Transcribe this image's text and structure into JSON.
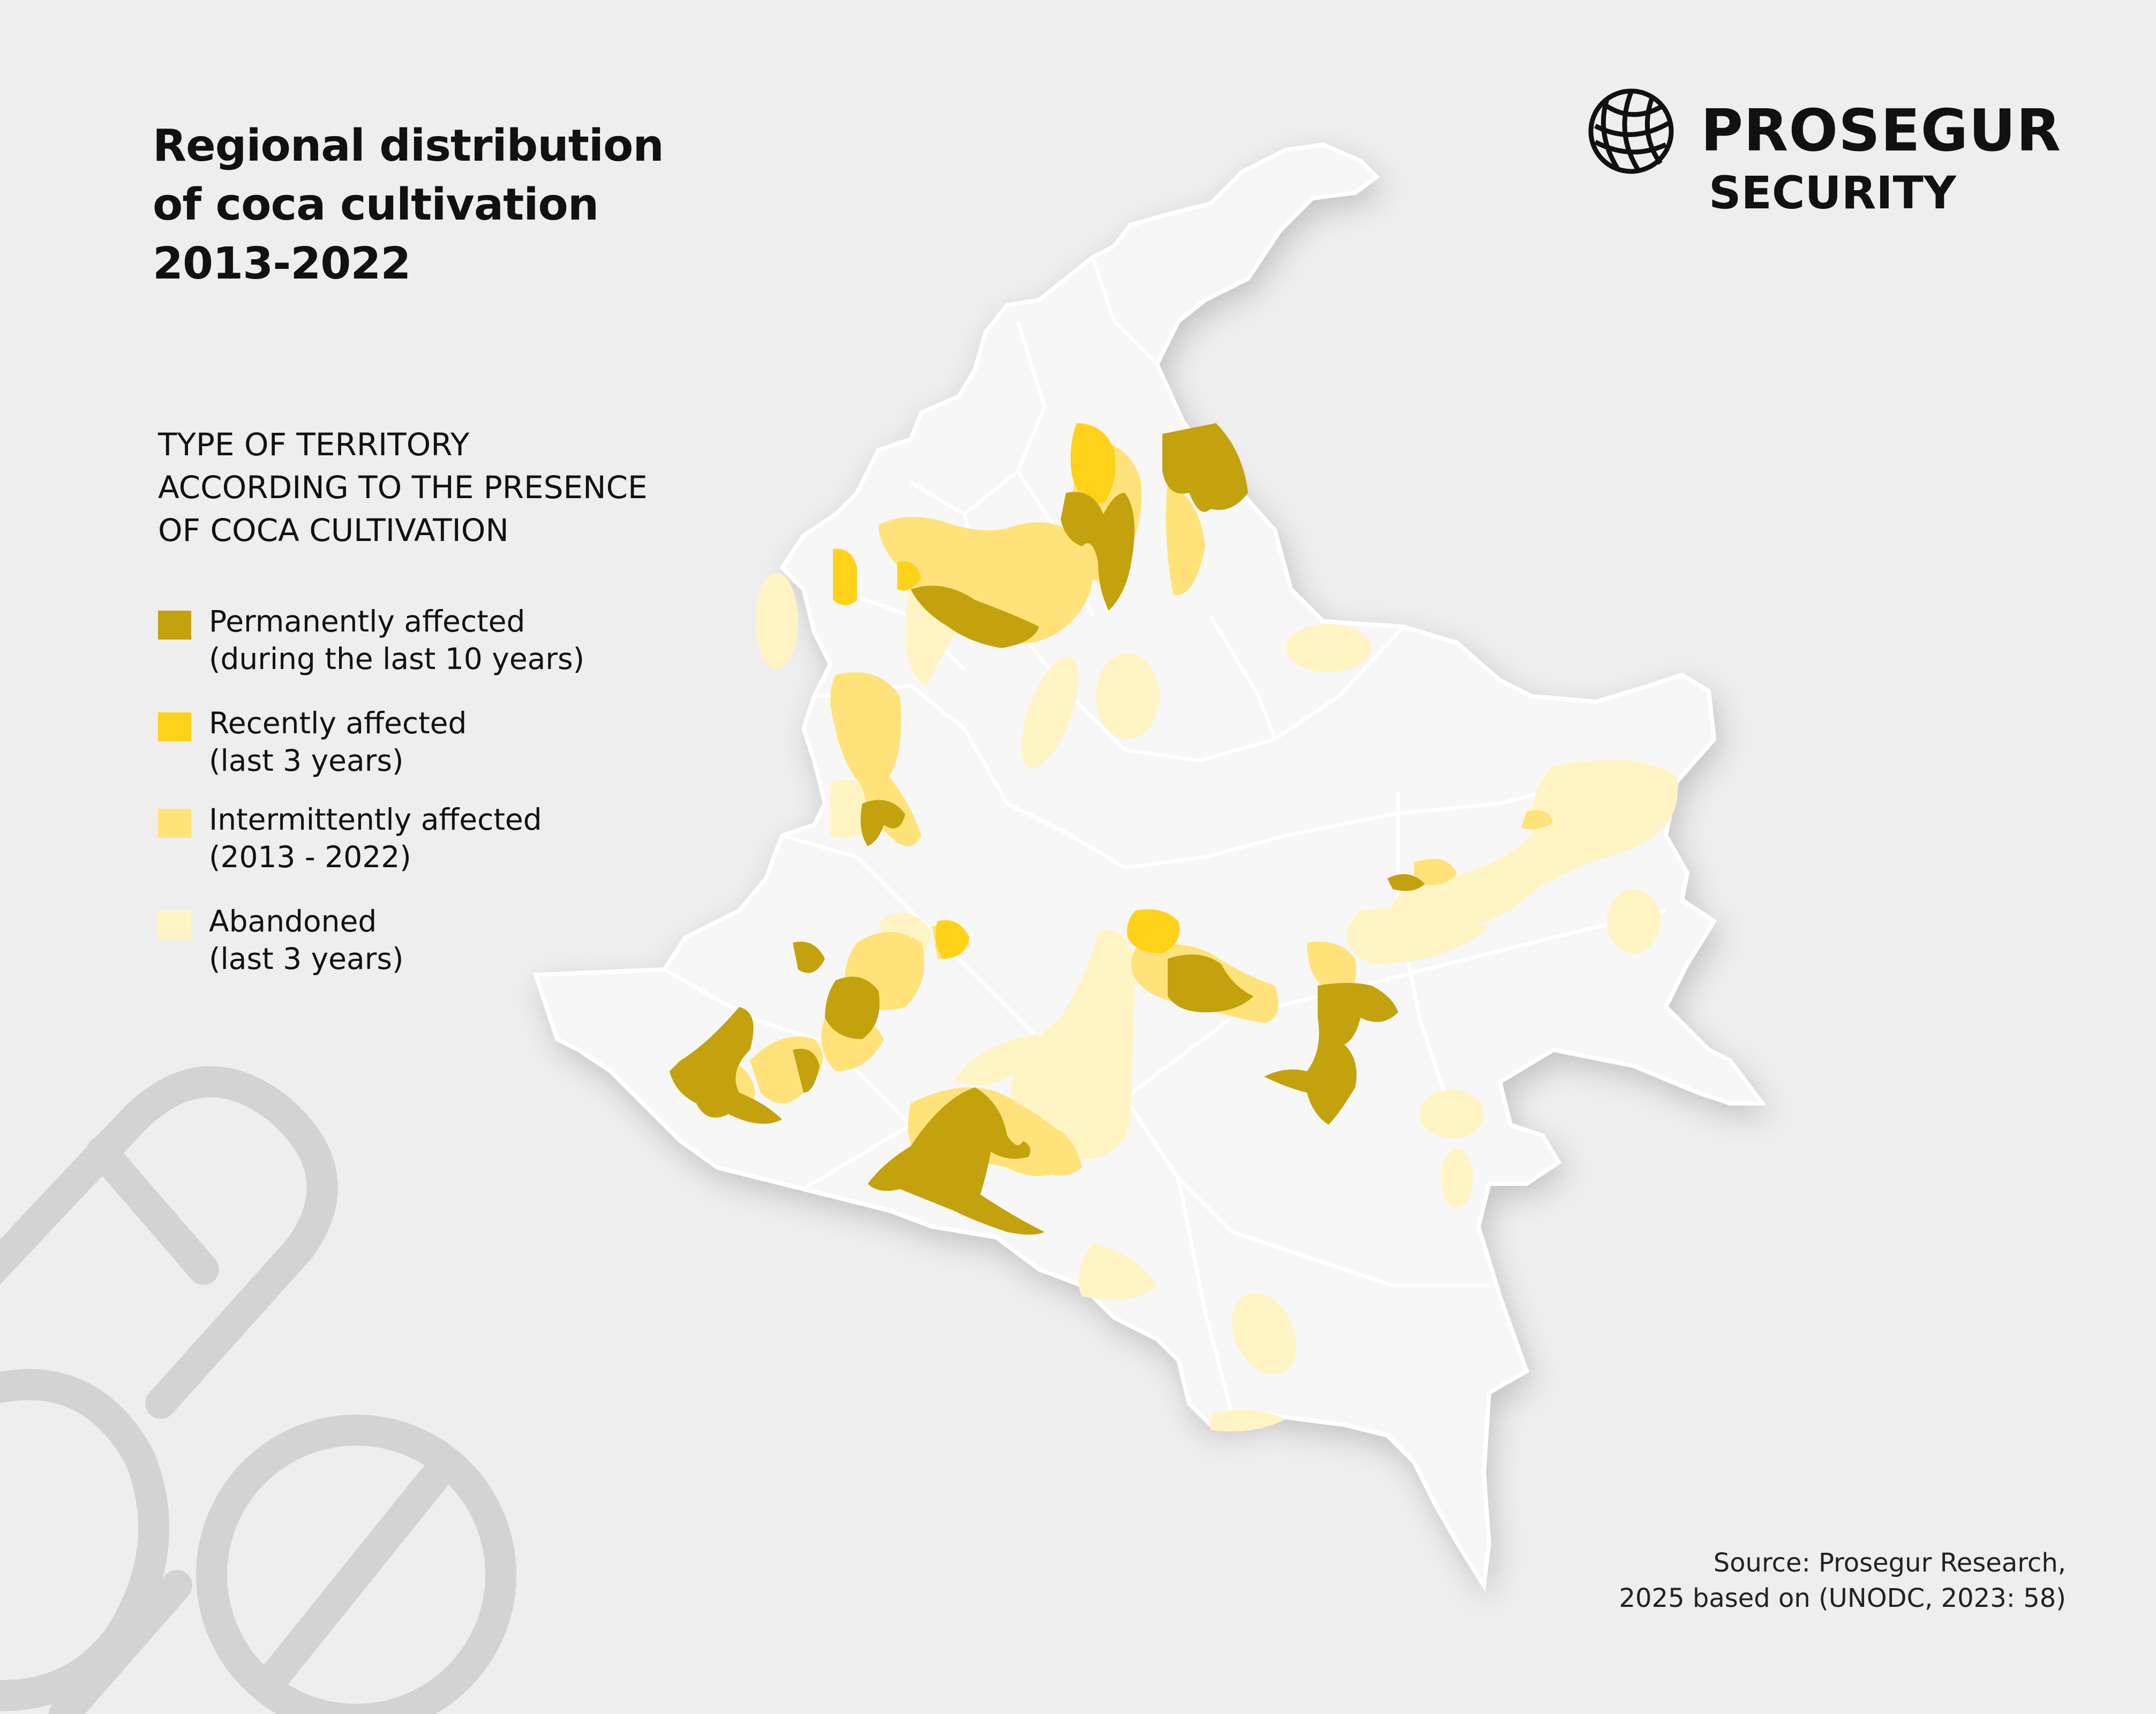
{
  "title": {
    "lines": [
      "Regional distribution",
      "of coca cultivation",
      "2013-2022"
    ]
  },
  "legend": {
    "heading_lines": [
      "TYPE OF TERRITORY",
      "ACCORDING TO THE PRESENCE",
      "OF COCA CULTIVATION"
    ],
    "items": [
      {
        "line1": "Permanently affected",
        "line2": "(during the last 10 years)",
        "color": "#c4a20d"
      },
      {
        "line1": "Recently affected",
        "line2": "(last 3 years)",
        "color": "#ffd21a"
      },
      {
        "line1": "Intermittently affected",
        "line2": "(2013 - 2022)",
        "color": "#ffe37a"
      },
      {
        "line1": "Abandoned",
        "line2": "(last 3 years)",
        "color": "#fff4c4"
      }
    ]
  },
  "logo": {
    "name": "PROSEGUR",
    "subtitle": "SECURITY",
    "icon": "globe-icon"
  },
  "source": {
    "lines": [
      "Source: Prosegur Research,",
      "2025 based on (UNODC, 2023: 58)"
    ]
  },
  "colors": {
    "background": "#eeeeee",
    "land": "#f7f7f7",
    "borders": "#ffffff",
    "decoration": "#d3d3d3"
  }
}
